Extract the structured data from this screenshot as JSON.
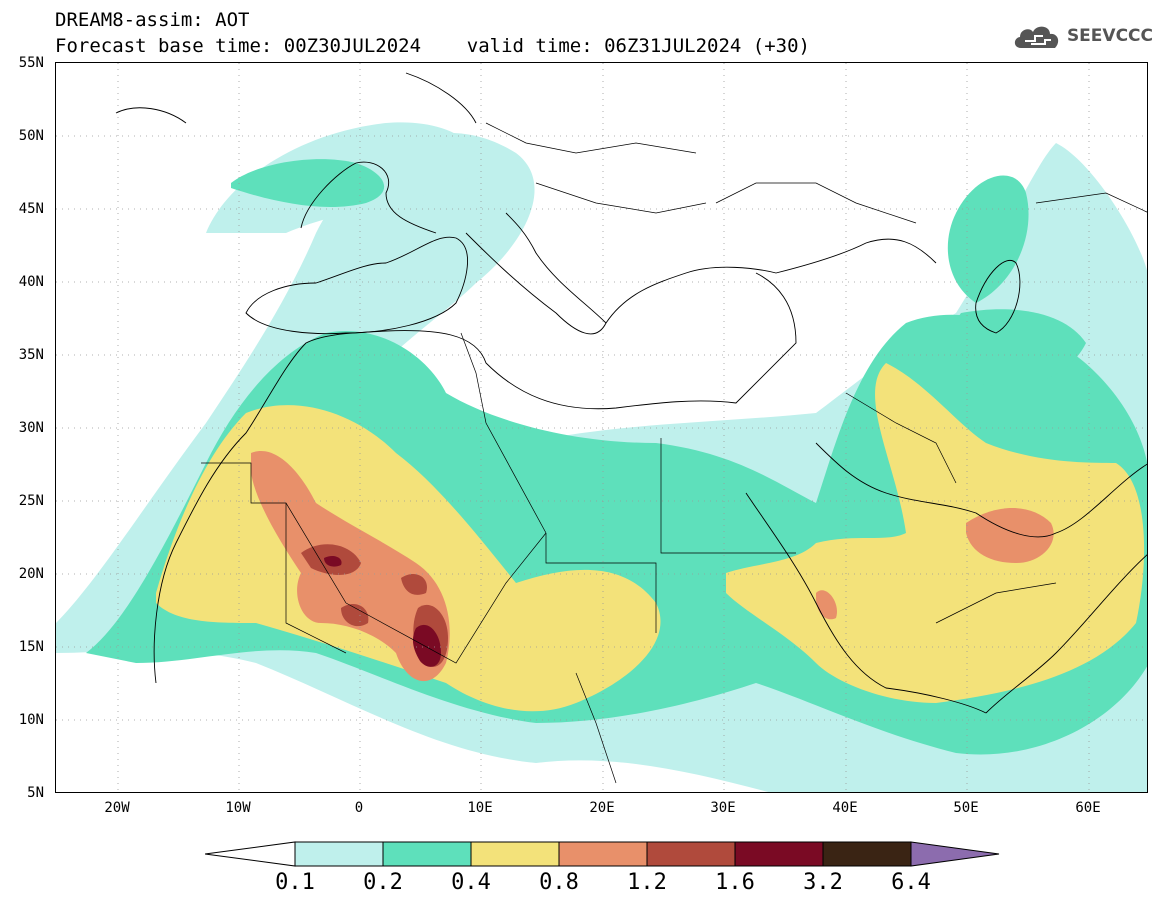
{
  "header": {
    "line1": "DREAM8-assim: AOT",
    "line2": "Forecast base time: 00Z30JUL2024    valid time: 06Z31JUL2024 (+30)"
  },
  "logo": {
    "text": "SEEVCCC",
    "icon": "cloud-icon"
  },
  "map": {
    "y_ticks": [
      "55N",
      "50N",
      "45N",
      "40N",
      "35N",
      "30N",
      "25N",
      "20N",
      "15N",
      "10N",
      "5N"
    ],
    "x_ticks": [
      "20W",
      "10W",
      "0",
      "10E",
      "20E",
      "30E",
      "40E",
      "50E",
      "60E"
    ]
  },
  "colorbar": {
    "labels": [
      "0.1",
      "0.2",
      "0.4",
      "0.8",
      "1.2",
      "1.6",
      "3.2",
      "6.4"
    ],
    "colors": [
      "#bff0ec",
      "#5ee0bb",
      "#f3e27a",
      "#e8906a",
      "#b04a3c",
      "#7a0a24",
      "#3a2414",
      "#8c6cae"
    ]
  }
}
